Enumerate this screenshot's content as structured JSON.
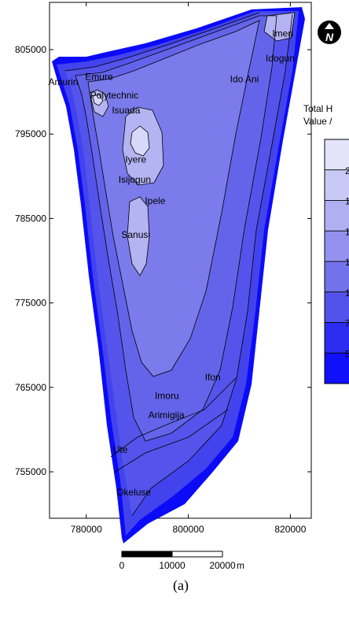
{
  "figure": {
    "caption": "(a)",
    "legend_title_line1": "Total H",
    "legend_title_line2": "Value /",
    "legend_partial_labels": [
      "2",
      "1",
      "1",
      "1",
      "1",
      "7",
      "5"
    ],
    "north_letter": "N",
    "scale_bar": {
      "labels": [
        "0",
        "10000",
        "20000"
      ],
      "unit": "m"
    }
  },
  "chart_data": {
    "type": "contour-map",
    "x_ticks": [
      "780000",
      "800000",
      "820000"
    ],
    "y_ticks": [
      "805000",
      "795000",
      "785000",
      "775000",
      "765000",
      "755000"
    ],
    "xlim": [
      772800,
      824100
    ],
    "ylim": [
      749500,
      810600
    ],
    "places": [
      {
        "name": "Imeri",
        "x": 818500,
        "y": 806900
      },
      {
        "name": "Idogun",
        "x": 818000,
        "y": 804000
      },
      {
        "name": "Ido Ani",
        "x": 811000,
        "y": 801500
      },
      {
        "name": "Amurin",
        "x": 775500,
        "y": 801200
      },
      {
        "name": "Emure",
        "x": 782500,
        "y": 801800
      },
      {
        "name": "Polytechnic",
        "x": 785500,
        "y": 799600
      },
      {
        "name": "Isuada",
        "x": 787800,
        "y": 797800
      },
      {
        "name": "Iyere",
        "x": 789700,
        "y": 792000
      },
      {
        "name": "Isijogun",
        "x": 789500,
        "y": 789600
      },
      {
        "name": "Ipele",
        "x": 793500,
        "y": 787100
      },
      {
        "name": "Sanusi",
        "x": 789700,
        "y": 783100
      },
      {
        "name": "Ifon",
        "x": 804800,
        "y": 766200
      },
      {
        "name": "Imoru",
        "x": 795800,
        "y": 764000
      },
      {
        "name": "Arimigija",
        "x": 795700,
        "y": 761700
      },
      {
        "name": "Ute",
        "x": 786700,
        "y": 757600
      },
      {
        "name": "Okeluse",
        "x": 789300,
        "y": 752600
      }
    ],
    "legend_colors": [
      "#e3e3fb",
      "#c9c9f5",
      "#afaff2",
      "#9292ee",
      "#7272ea",
      "#5252ec",
      "#2d2df1",
      "#1010fb"
    ]
  },
  "colors": {
    "background": "#ffffff",
    "map_base": "#4343ee",
    "band_2": "#5454ec",
    "band_3": "#6464ea",
    "band_4": "#7b7bec",
    "band_5": "#9191ef",
    "band_6": "#b4b4f3",
    "band_7": "#d8d8fa",
    "edge_dark": "#0b0bf8"
  }
}
